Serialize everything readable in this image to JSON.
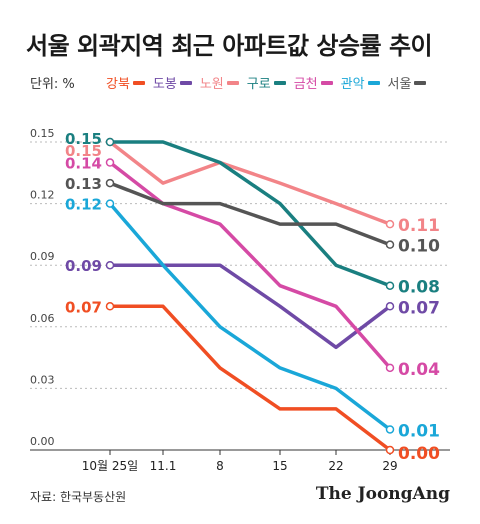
{
  "chart_data": {
    "type": "line",
    "title": "서울 외곽지역 최근 아파트값 상승률 추이",
    "unit_label": "단위: %",
    "categories": [
      "10월 25일",
      "11.1",
      "8",
      "15",
      "22",
      "29"
    ],
    "yticks": [
      "0.15",
      "0.12",
      "0.09",
      "0.06",
      "0.03",
      "0.00"
    ],
    "ylim": [
      0,
      0.15
    ],
    "grid": true,
    "series": [
      {
        "name": "강북",
        "color": "#f04e23",
        "values": [
          0.07,
          0.07,
          0.04,
          0.02,
          0.02,
          0.0
        ],
        "start_label": "0.07",
        "end_label": "0.00"
      },
      {
        "name": "도봉",
        "color": "#6f4aa6",
        "values": [
          0.09,
          0.09,
          0.09,
          0.07,
          0.05,
          0.07
        ],
        "start_label": "0.09",
        "end_label": "0.07"
      },
      {
        "name": "노원",
        "color": "#f28488",
        "values": [
          0.15,
          0.13,
          0.14,
          0.13,
          0.12,
          0.11
        ],
        "start_label": "0.15",
        "end_label": "0.11"
      },
      {
        "name": "구로",
        "color": "#1a7f80",
        "values": [
          0.15,
          0.15,
          0.14,
          0.12,
          0.09,
          0.08
        ],
        "start_label": "0.15",
        "end_label": "0.08"
      },
      {
        "name": "금천",
        "color": "#d54aa5",
        "values": [
          0.14,
          0.12,
          0.11,
          0.08,
          0.07,
          0.04
        ],
        "start_label": "0.14",
        "end_label": "0.04"
      },
      {
        "name": "관악",
        "color": "#1aa7d8",
        "values": [
          0.12,
          0.09,
          0.06,
          0.04,
          0.03,
          0.01
        ],
        "start_label": "0.12",
        "end_label": "0.01"
      },
      {
        "name": "서울",
        "color": "#555555",
        "values": [
          0.13,
          0.12,
          0.12,
          0.11,
          0.11,
          0.1
        ],
        "start_label": "0.13",
        "end_label": "0.10"
      }
    ]
  },
  "source": "자료: 한국부동산원",
  "logo": "The JoongAng"
}
